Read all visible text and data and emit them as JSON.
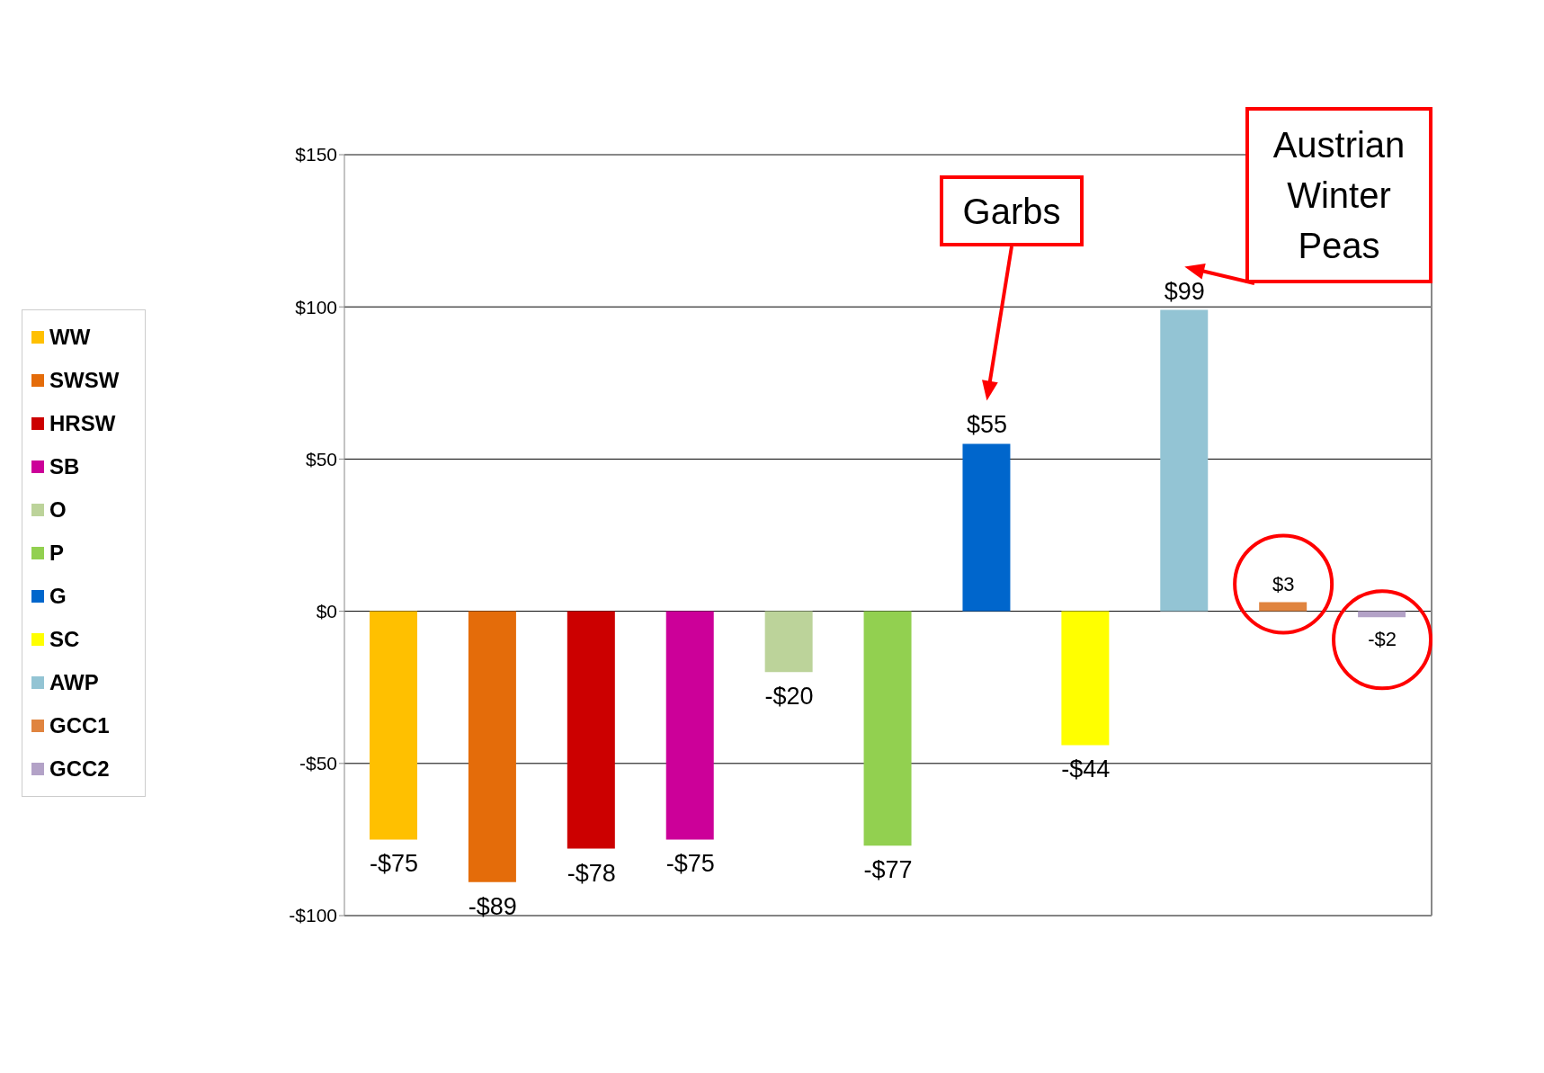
{
  "chart_data": {
    "type": "bar",
    "stacked": true,
    "categories": [
      null,
      null,
      null,
      null,
      null,
      null,
      null,
      null,
      null,
      null,
      null
    ],
    "series": [
      {
        "name": "WW",
        "color": "#ffc000",
        "values": [
          -75,
          null,
          null,
          null,
          null,
          null,
          null,
          null,
          null,
          null,
          null
        ],
        "value_labels": [
          "-$75",
          null,
          null,
          null,
          null,
          null,
          null,
          null,
          null,
          null,
          null
        ]
      },
      {
        "name": "SWSW",
        "color": "#e46c0a",
        "values": [
          null,
          -89,
          null,
          null,
          null,
          null,
          null,
          null,
          null,
          null,
          null
        ],
        "value_labels": [
          null,
          "-$89",
          null,
          null,
          null,
          null,
          null,
          null,
          null,
          null,
          null
        ]
      },
      {
        "name": "HRSW",
        "color": "#cc0000",
        "values": [
          null,
          null,
          -78,
          null,
          null,
          null,
          null,
          null,
          null,
          null,
          null
        ],
        "value_labels": [
          null,
          null,
          "-$78",
          null,
          null,
          null,
          null,
          null,
          null,
          null,
          null
        ]
      },
      {
        "name": "SB",
        "color": "#cc0099",
        "values": [
          null,
          null,
          null,
          -75,
          null,
          null,
          null,
          null,
          null,
          null,
          null
        ],
        "value_labels": [
          null,
          null,
          null,
          "-$75",
          null,
          null,
          null,
          null,
          null,
          null,
          null
        ]
      },
      {
        "name": "O",
        "color": "#bcd39a",
        "values": [
          null,
          null,
          null,
          null,
          -20,
          null,
          null,
          null,
          null,
          null,
          null
        ],
        "value_labels": [
          null,
          null,
          null,
          null,
          "-$20",
          null,
          null,
          null,
          null,
          null,
          null
        ]
      },
      {
        "name": "P",
        "color": "#92d050",
        "values": [
          null,
          null,
          null,
          null,
          null,
          -77,
          null,
          null,
          null,
          null,
          null
        ],
        "value_labels": [
          null,
          null,
          null,
          null,
          null,
          "-$77",
          null,
          null,
          null,
          null,
          null
        ]
      },
      {
        "name": "G",
        "color": "#0066cc",
        "values": [
          null,
          null,
          null,
          null,
          null,
          null,
          55,
          null,
          null,
          null,
          null
        ],
        "value_labels": [
          null,
          null,
          null,
          null,
          null,
          null,
          "$55",
          null,
          null,
          null,
          null
        ]
      },
      {
        "name": "SC",
        "color": "#ffff00",
        "values": [
          null,
          null,
          null,
          null,
          null,
          null,
          null,
          -44,
          null,
          null,
          null
        ],
        "value_labels": [
          null,
          null,
          null,
          null,
          null,
          null,
          null,
          "-$44",
          null,
          null,
          null
        ]
      },
      {
        "name": "AWP",
        "color": "#93c4d4",
        "values": [
          null,
          null,
          null,
          null,
          null,
          null,
          null,
          null,
          99,
          null,
          null
        ],
        "value_labels": [
          null,
          null,
          null,
          null,
          null,
          null,
          null,
          null,
          "$99",
          null,
          null
        ]
      },
      {
        "name": "GCC1",
        "color": "#e0843f",
        "values": [
          null,
          null,
          null,
          null,
          null,
          null,
          null,
          null,
          null,
          3,
          null
        ],
        "value_labels": [
          null,
          null,
          null,
          null,
          null,
          null,
          null,
          null,
          null,
          "$3",
          null
        ]
      },
      {
        "name": "GCC2",
        "color": "#b3a2c7",
        "values": [
          null,
          null,
          null,
          null,
          null,
          null,
          null,
          null,
          null,
          null,
          -2
        ],
        "value_labels": [
          null,
          null,
          null,
          null,
          null,
          null,
          null,
          null,
          null,
          null,
          "-$2"
        ]
      }
    ],
    "ylim": [
      -100,
      150
    ],
    "yticks": [
      {
        "value": -100,
        "label": "-$100"
      },
      {
        "value": -50,
        "label": "-$50"
      },
      {
        "value": 0,
        "label": "$0"
      },
      {
        "value": 50,
        "label": "$50"
      },
      {
        "value": 100,
        "label": "$100"
      },
      {
        "value": 150,
        "label": "$150"
      }
    ],
    "grid": "y",
    "legend": "left",
    "annotations": [
      "Garbs",
      "Austrian Winter Peas"
    ]
  }
}
